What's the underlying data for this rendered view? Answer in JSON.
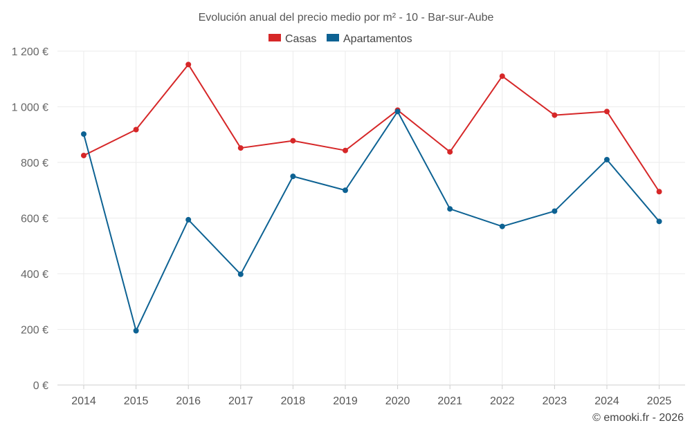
{
  "chart_data": {
    "type": "line",
    "title": "Evolución anual del precio medio por m² - 10 - Bar-sur-Aube",
    "categories": [
      "2014",
      "2015",
      "2016",
      "2017",
      "2018",
      "2019",
      "2020",
      "2021",
      "2022",
      "2023",
      "2024",
      "2025"
    ],
    "series": [
      {
        "name": "Casas",
        "color": "#d62728",
        "values": [
          825,
          918,
          1152,
          852,
          878,
          843,
          988,
          838,
          1110,
          970,
          983,
          695
        ]
      },
      {
        "name": "Apartamentos",
        "color": "#0d6293",
        "values": [
          902,
          195,
          594,
          398,
          750,
          700,
          983,
          633,
          570,
          625,
          810,
          588
        ]
      }
    ],
    "ylim": [
      0,
      1200
    ],
    "yticks": [
      0,
      200,
      400,
      600,
      800,
      1000,
      1200
    ],
    "ytick_labels": [
      "0 €",
      "200 €",
      "400 €",
      "600 €",
      "800 €",
      "1 000 €",
      "1 200 €"
    ],
    "xlabel": "",
    "ylabel": "",
    "grid": true,
    "legend_position": "top-center"
  },
  "credit": "© emooki.fr - 2026",
  "colors": {
    "grid": "#ebebeb",
    "axis": "#cccccc"
  }
}
